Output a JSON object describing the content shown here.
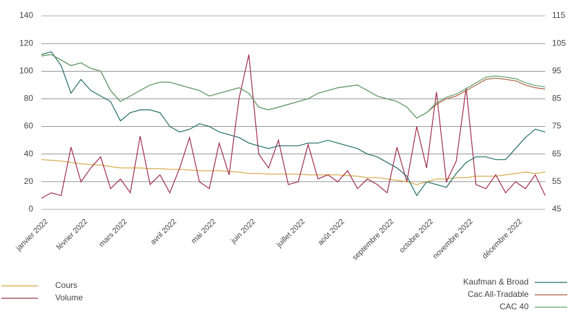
{
  "chart_data": {
    "type": "line",
    "categories": [
      "janvier 2022",
      null,
      null,
      null,
      "février 2022",
      null,
      null,
      null,
      "mars 2022",
      null,
      null,
      null,
      null,
      "avril 2022",
      null,
      null,
      null,
      "mai 2022",
      null,
      null,
      null,
      "juin 2022",
      null,
      null,
      null,
      null,
      "juillet 2022",
      null,
      null,
      null,
      "août 2022",
      null,
      null,
      null,
      null,
      "septembre 2022",
      null,
      null,
      null,
      "octobre 2022",
      null,
      null,
      null,
      "novembre 2022",
      null,
      null,
      null,
      null,
      "décembre 2022",
      null,
      null,
      null
    ],
    "ylim": [
      0,
      140
    ],
    "yticks": [
      0,
      20,
      40,
      60,
      80,
      100,
      120,
      140
    ],
    "y2lim": [
      45,
      115
    ],
    "y2ticks": [
      45,
      55,
      65,
      75,
      85,
      95,
      105,
      115
    ],
    "grid": true,
    "series": [
      {
        "name": "Cours",
        "color": "#d4a33a",
        "values": [
          36,
          35.5,
          35,
          34,
          33,
          32.5,
          32,
          31,
          30,
          30,
          30,
          29.5,
          29.5,
          29,
          29,
          28.5,
          28,
          28,
          28,
          27.5,
          27,
          26,
          26,
          25.5,
          25.5,
          25.5,
          25.5,
          25,
          25,
          25,
          25,
          24.5,
          24,
          23,
          23,
          22,
          21,
          20,
          18,
          20,
          22,
          22,
          23,
          23,
          24,
          24,
          24,
          25,
          26,
          27,
          26,
          27
        ]
      },
      {
        "name": "Volume",
        "color": "#9e2a4a",
        "values": [
          8,
          12,
          10,
          45,
          20,
          30,
          38,
          15,
          22,
          12,
          53,
          18,
          25,
          12,
          30,
          52,
          20,
          15,
          48,
          25,
          80,
          112,
          40,
          30,
          50,
          18,
          20,
          47,
          22,
          25,
          20,
          28,
          15,
          22,
          18,
          12,
          45,
          20,
          60,
          30,
          85,
          20,
          35,
          88,
          18,
          15,
          25,
          12,
          20,
          15,
          25,
          10
        ]
      },
      {
        "name": "Kaufman & Broad",
        "color": "#1e6a64",
        "axis": "y2",
        "values": [
          101,
          102,
          97,
          87,
          92,
          88,
          86,
          84,
          77,
          80,
          81,
          81,
          80,
          75,
          73,
          74,
          76,
          75,
          73,
          72,
          71,
          69,
          68,
          67,
          68,
          68,
          68,
          69,
          69,
          70,
          69,
          68,
          67,
          65,
          64,
          62,
          60,
          57,
          50,
          55,
          54,
          53,
          58,
          62,
          64,
          64,
          63,
          63,
          67,
          71,
          74,
          73
        ]
      },
      {
        "name": "Cac All-Tradable",
        "color": "#a85a3a",
        "axis": "y2",
        "values": [
          100.5,
          101,
          99,
          97,
          98,
          96,
          95,
          88,
          84,
          86,
          88,
          90,
          91,
          91,
          90,
          89,
          88,
          86,
          87,
          88,
          89,
          87,
          82,
          81,
          82,
          83,
          84,
          85,
          87,
          88,
          89,
          89.5,
          90,
          88,
          86,
          85,
          84,
          82,
          78,
          80,
          83,
          85,
          86,
          88,
          90,
          92,
          92.5,
          92,
          91.5,
          90,
          89,
          88.5
        ]
      },
      {
        "name": "CAC 40",
        "color": "#5aa06a",
        "axis": "y2",
        "values": [
          100.5,
          101,
          99,
          97,
          98,
          96,
          95,
          88,
          84,
          86,
          88,
          90,
          91,
          91,
          90,
          89,
          88,
          86,
          87,
          88,
          89,
          87,
          82,
          81,
          82,
          83,
          84,
          85,
          87,
          88,
          89,
          89.5,
          90,
          88,
          86,
          85,
          84,
          82,
          78,
          80,
          83.5,
          85.6,
          86.7,
          88.7,
          90.8,
          92.8,
          93.3,
          92.8,
          92.3,
          90.8,
          89.8,
          89.3
        ]
      }
    ]
  }
}
